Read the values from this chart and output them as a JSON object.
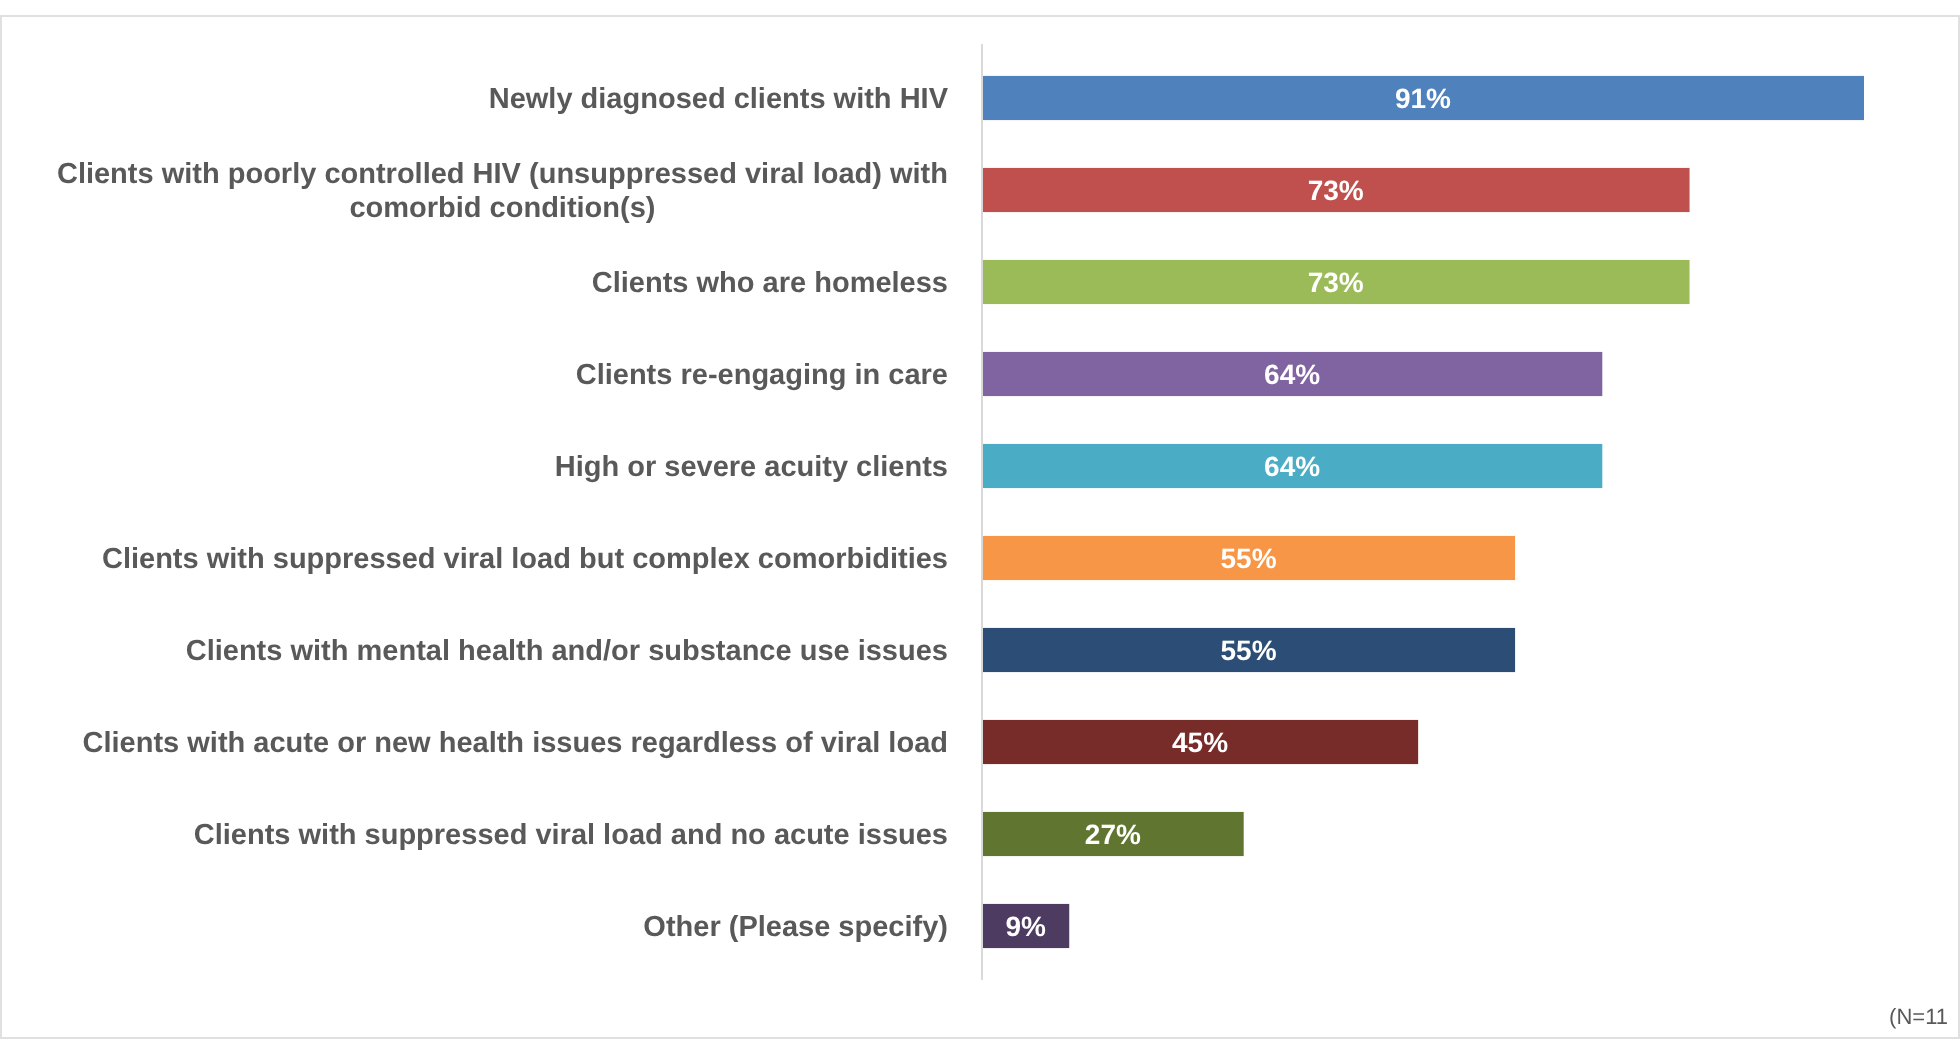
{
  "chart_data": {
    "type": "bar",
    "orientation": "horizontal",
    "data_labels": true,
    "categories": [
      "Newly diagnosed clients with HIV",
      "Clients with poorly controlled HIV (unsuppressed viral load) with comorbid condition(s)",
      "Clients who are homeless",
      "Clients re-engaging in care",
      "High or severe acuity clients",
      "Clients with suppressed viral load but complex comorbidities",
      "Clients with mental health and/or substance use issues",
      "Clients with acute or new health issues regardless of viral load",
      "Clients with suppressed viral load and no acute issues",
      "Other (Please specify)"
    ],
    "values": [
      91,
      73,
      73,
      64,
      64,
      55,
      55,
      45,
      27,
      9
    ],
    "value_labels": [
      "91%",
      "73%",
      "73%",
      "64%",
      "64%",
      "55%",
      "55%",
      "45%",
      "27%",
      "9%"
    ],
    "colors": [
      "#4f81bd",
      "#c0504d",
      "#9bbb59",
      "#8064a2",
      "#4bacc6",
      "#f79646",
      "#2c4d75",
      "#772c2a",
      "#5f7530",
      "#4d3b62"
    ],
    "annotations": [
      "(N=11"
    ]
  }
}
